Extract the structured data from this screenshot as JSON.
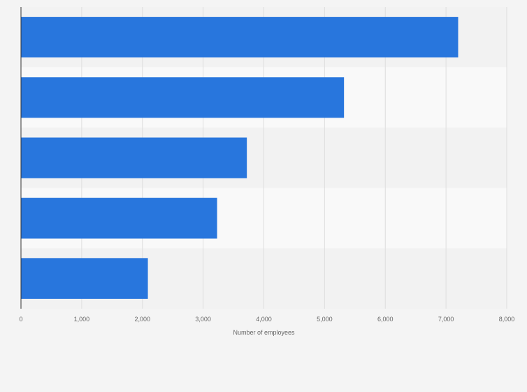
{
  "chart_data": {
    "type": "bar",
    "orientation": "horizontal",
    "categories": [
      "",
      "",
      "",
      "",
      ""
    ],
    "values": [
      7200,
      5320,
      3720,
      3230,
      2090
    ],
    "xlabel": "Number of employees",
    "ylabel": "",
    "xlim": [
      0,
      8000
    ],
    "x_ticks": [
      0,
      1000,
      2000,
      3000,
      4000,
      5000,
      6000,
      7000,
      8000
    ],
    "x_tick_labels": [
      "0",
      "1,000",
      "2,000",
      "3,000",
      "4,000",
      "5,000",
      "6,000",
      "7,000",
      "8,000"
    ],
    "grid": "vertical",
    "legend": "none"
  },
  "colors": {
    "bar": "#2876dd",
    "band_dark": "#f2f2f2",
    "band_light": "#f9f9f9",
    "gridline": "#dedede",
    "axis": "#333333",
    "page_background": "#f4f4f4"
  }
}
